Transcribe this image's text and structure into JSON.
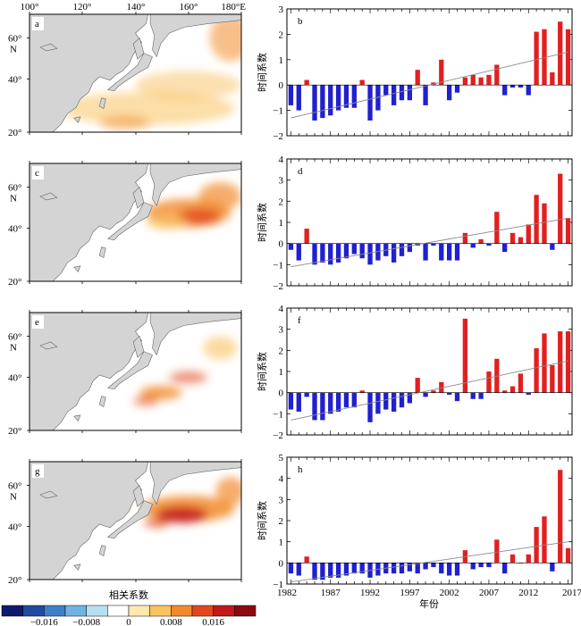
{
  "maps": {
    "lon_labels": [
      "100°",
      "120°",
      "140°",
      "160°",
      "180°E"
    ],
    "lat_labels": [
      "60°",
      "N",
      "40°",
      "20°"
    ],
    "panels": [
      {
        "label": "a",
        "pattern": "widespread weak positive correlation, stronger in subtropical band"
      },
      {
        "label": "c",
        "pattern": "strong positive core east of Japan near 45°N 160°E"
      },
      {
        "label": "e",
        "pattern": "patchy positive correlation along mid-latitude band"
      },
      {
        "label": "g",
        "pattern": "strong positive core north-east of Japan near 45°N 155°E"
      }
    ]
  },
  "colorbar": {
    "title": "相关系数",
    "tick_labels": [
      "−0.016",
      "−0.008",
      "0",
      "0.008",
      "0.016"
    ],
    "colors": [
      "#0d1a6e",
      "#1f4aa0",
      "#3f7ec8",
      "#72b2e0",
      "#b7dff2",
      "#ffffff",
      "#fde9ae",
      "#f9c25f",
      "#f28a2c",
      "#e2481d",
      "#c2191b",
      "#8b0b10"
    ]
  },
  "bar_panels": {
    "ylabel": "时间系数",
    "xlabel": "年份",
    "x_tick_labels": [
      "1982",
      "1987",
      "1992",
      "1997",
      "2002",
      "2007",
      "2012",
      "2017"
    ],
    "colors": {
      "positive": "#e02020",
      "negative": "#2020d0",
      "trend": "#8a8a8a"
    }
  },
  "chart_data": [
    {
      "type": "bar",
      "label": "b",
      "x": [
        1982,
        1983,
        1984,
        1985,
        1986,
        1987,
        1988,
        1989,
        1990,
        1991,
        1992,
        1993,
        1994,
        1995,
        1996,
        1997,
        1998,
        1999,
        2000,
        2001,
        2002,
        2003,
        2004,
        2005,
        2006,
        2007,
        2008,
        2009,
        2010,
        2011,
        2012,
        2013,
        2014,
        2015,
        2016,
        2017
      ],
      "values": [
        -0.8,
        -1.0,
        0.2,
        -1.4,
        -1.3,
        -1.2,
        -1.0,
        -0.9,
        -0.9,
        0.2,
        -1.4,
        -1.0,
        -0.4,
        -0.8,
        -0.6,
        -0.6,
        0.6,
        -0.8,
        0.1,
        1.0,
        -0.6,
        -0.3,
        0.3,
        0.4,
        0.3,
        0.4,
        0.8,
        -0.4,
        -0.1,
        -0.1,
        -0.4,
        2.1,
        2.2,
        0.5,
        2.5,
        2.2
      ],
      "trend": [
        -1.3,
        1.3
      ],
      "ylim": [
        -2,
        3
      ],
      "yticks": [
        -2,
        -1,
        0,
        1,
        2,
        3
      ]
    },
    {
      "type": "bar",
      "label": "d",
      "x": [
        1982,
        1983,
        1984,
        1985,
        1986,
        1987,
        1988,
        1989,
        1990,
        1991,
        1992,
        1993,
        1994,
        1995,
        1996,
        1997,
        1998,
        1999,
        2000,
        2001,
        2002,
        2003,
        2004,
        2005,
        2006,
        2007,
        2008,
        2009,
        2010,
        2011,
        2012,
        2013,
        2014,
        2015,
        2016,
        2017
      ],
      "values": [
        -0.3,
        -0.8,
        0.7,
        -1.0,
        -0.9,
        -1.0,
        -0.9,
        -0.7,
        -0.5,
        -0.7,
        -1.0,
        -0.8,
        -0.6,
        -0.9,
        -0.6,
        -0.4,
        -0.1,
        -0.8,
        -0.1,
        -0.8,
        -0.8,
        -0.8,
        0.5,
        -0.2,
        0.2,
        -0.1,
        1.5,
        -0.4,
        0.5,
        0.3,
        0.9,
        2.3,
        1.9,
        -0.3,
        3.3,
        1.2
      ],
      "trend": [
        -1.1,
        1.2
      ],
      "ylim": [
        -2,
        4
      ],
      "yticks": [
        -2,
        -1,
        0,
        1,
        2,
        3,
        4
      ]
    },
    {
      "type": "bar",
      "label": "f",
      "x": [
        1982,
        1983,
        1984,
        1985,
        1986,
        1987,
        1988,
        1989,
        1990,
        1991,
        1992,
        1993,
        1994,
        1995,
        1996,
        1997,
        1998,
        1999,
        2000,
        2001,
        2002,
        2003,
        2004,
        2005,
        2006,
        2007,
        2008,
        2009,
        2010,
        2011,
        2012,
        2013,
        2014,
        2015,
        2016,
        2017
      ],
      "values": [
        -0.8,
        -0.9,
        -0.2,
        -1.3,
        -1.3,
        -1.0,
        -0.9,
        -0.7,
        -0.7,
        0.1,
        -1.4,
        -1.0,
        -0.8,
        -0.9,
        -0.7,
        -0.5,
        0.7,
        -0.2,
        0.1,
        0.5,
        -0.1,
        -0.4,
        3.5,
        -0.3,
        -0.3,
        1.0,
        1.6,
        0.1,
        0.3,
        0.9,
        -0.1,
        2.1,
        2.8,
        1.3,
        2.9,
        2.9
      ],
      "trend": [
        -1.3,
        1.5
      ],
      "ylim": [
        -2,
        4
      ],
      "yticks": [
        -2,
        -1,
        0,
        1,
        2,
        3,
        4
      ]
    },
    {
      "type": "bar",
      "label": "h",
      "x": [
        1982,
        1983,
        1984,
        1985,
        1986,
        1987,
        1988,
        1989,
        1990,
        1991,
        1992,
        1993,
        1994,
        1995,
        1996,
        1997,
        1998,
        1999,
        2000,
        2001,
        2002,
        2003,
        2004,
        2005,
        2006,
        2007,
        2008,
        2009,
        2010,
        2011,
        2012,
        2013,
        2014,
        2015,
        2016,
        2017
      ],
      "values": [
        -0.5,
        -0.6,
        0.3,
        -0.8,
        -0.8,
        -0.7,
        -0.7,
        -0.6,
        -0.5,
        -0.5,
        -0.7,
        -0.6,
        -0.5,
        -0.5,
        -0.5,
        -0.4,
        -0.5,
        -0.3,
        -0.2,
        -0.5,
        -0.6,
        -0.6,
        0.6,
        -0.3,
        -0.2,
        -0.2,
        1.1,
        -0.5,
        0.4,
        0.0,
        0.4,
        1.7,
        2.2,
        -0.4,
        4.4,
        0.7
      ],
      "trend": [
        -0.9,
        1.0
      ],
      "ylim": [
        -1,
        5
      ],
      "yticks": [
        -1,
        0,
        1,
        2,
        3,
        4,
        5
      ]
    }
  ]
}
